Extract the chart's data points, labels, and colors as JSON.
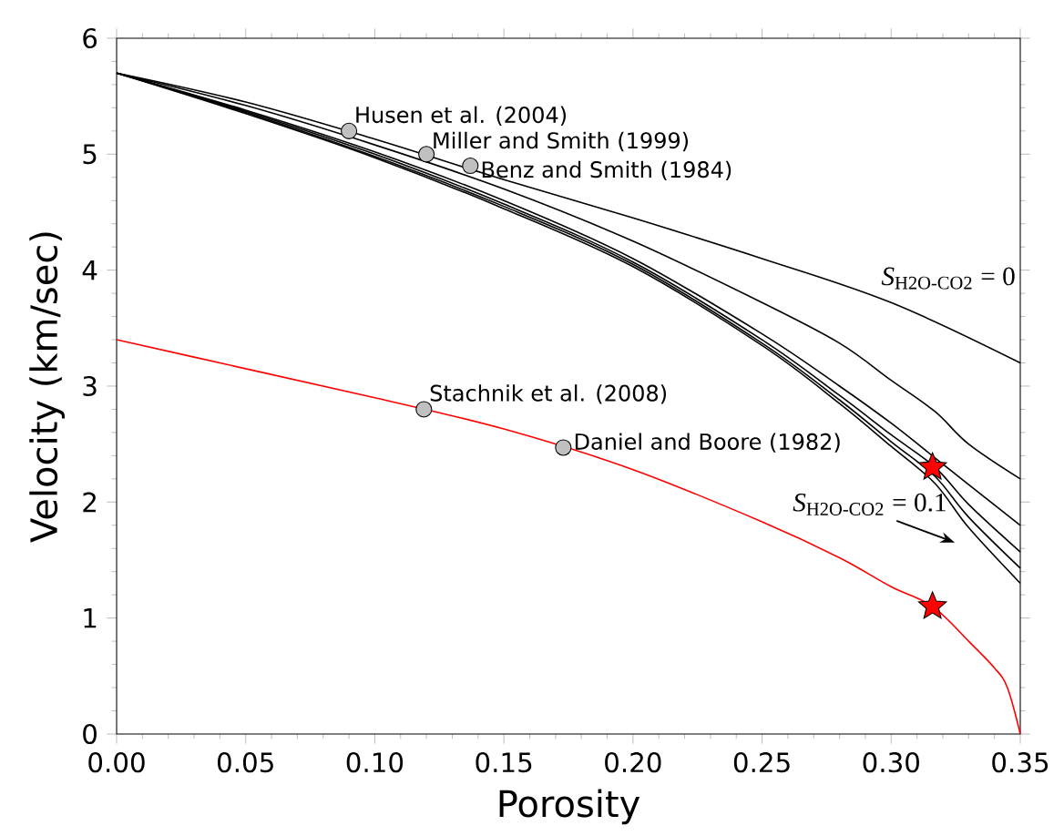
{
  "chart_data": {
    "type": "line",
    "xlabel": "Porosity",
    "ylabel": "Velocity (km/sec)",
    "xlim": [
      0,
      0.35
    ],
    "ylim": [
      0,
      6
    ],
    "xticks": [
      {
        "value": 0,
        "label": "0.00"
      },
      {
        "value": 0.05,
        "label": "0.05"
      },
      {
        "value": 0.1,
        "label": "0.10"
      },
      {
        "value": 0.15,
        "label": "0.15"
      },
      {
        "value": 0.2,
        "label": "0.20"
      },
      {
        "value": 0.25,
        "label": "0.25"
      },
      {
        "value": 0.3,
        "label": "0.30"
      },
      {
        "value": 0.35,
        "label": "0.35"
      }
    ],
    "yticks": [
      0,
      1,
      2,
      3,
      4,
      5,
      6
    ],
    "series": [
      {
        "color": "#000000",
        "x": [
          0,
          0.05,
          0.1,
          0.15,
          0.2,
          0.25,
          0.3,
          0.35
        ],
        "values": [
          5.7,
          5.45,
          5.13,
          4.78,
          4.45,
          4.1,
          3.72,
          3.2
        ]
      },
      {
        "color": "#000000",
        "x": [
          0,
          0.05,
          0.1,
          0.15,
          0.2,
          0.25,
          0.28,
          0.3,
          0.317,
          0.33,
          0.35
        ],
        "values": [
          5.7,
          5.42,
          5.08,
          4.7,
          4.25,
          3.72,
          3.37,
          3.05,
          2.78,
          2.5,
          2.2
        ]
      },
      {
        "color": "#000000",
        "x": [
          0,
          0.05,
          0.1,
          0.15,
          0.2,
          0.25,
          0.28,
          0.3,
          0.317,
          0.33,
          0.35
        ],
        "values": [
          5.7,
          5.38,
          5.02,
          4.6,
          4.1,
          3.45,
          3.0,
          2.68,
          2.38,
          2.15,
          1.8
        ]
      },
      {
        "color": "#000000",
        "x": [
          0,
          0.05,
          0.1,
          0.15,
          0.2,
          0.25,
          0.28,
          0.3,
          0.317,
          0.33,
          0.35
        ],
        "values": [
          5.7,
          5.37,
          5.0,
          4.57,
          4.07,
          3.4,
          2.92,
          2.58,
          2.3,
          1.98,
          1.57
        ]
      },
      {
        "color": "#000000",
        "x": [
          0,
          0.05,
          0.1,
          0.15,
          0.2,
          0.25,
          0.28,
          0.3,
          0.317,
          0.33,
          0.35
        ],
        "values": [
          5.7,
          5.36,
          4.98,
          4.55,
          4.05,
          3.37,
          2.88,
          2.52,
          2.22,
          1.87,
          1.43
        ]
      },
      {
        "color": "#000000",
        "x": [
          0,
          0.05,
          0.1,
          0.15,
          0.2,
          0.25,
          0.28,
          0.3,
          0.317,
          0.33,
          0.35
        ],
        "values": [
          5.7,
          5.35,
          4.97,
          4.53,
          4.03,
          3.35,
          2.85,
          2.48,
          2.16,
          1.78,
          1.3
        ]
      },
      {
        "color": "#ff0000",
        "x": [
          0,
          0.05,
          0.1,
          0.15,
          0.2,
          0.25,
          0.28,
          0.3,
          0.316,
          0.33,
          0.34,
          0.345,
          0.35
        ],
        "values": [
          3.4,
          3.15,
          2.9,
          2.63,
          2.28,
          1.83,
          1.52,
          1.27,
          1.1,
          0.8,
          0.57,
          0.4,
          0
        ]
      },
      {
        "type": "scatter",
        "marker": "circle",
        "color": "#c0c0c0",
        "x": [
          0.09,
          0.12,
          0.137,
          0.119,
          0.173
        ],
        "values": [
          5.2,
          5.0,
          4.9,
          2.8,
          2.47
        ]
      },
      {
        "type": "scatter",
        "marker": "star",
        "color": "#ff0000",
        "x": [
          0.316,
          0.316
        ],
        "values": [
          2.3,
          1.1
        ]
      }
    ],
    "annotations": [
      {
        "text": "Husen et al. (2004)",
        "x": 0.09,
        "y": 5.2
      },
      {
        "text": "Miller and Smith (1999)",
        "x": 0.12,
        "y": 5.0
      },
      {
        "text": "Benz and Smith (1984)",
        "x": 0.137,
        "y": 4.9
      },
      {
        "text": "Stachnik et al. (2008)",
        "x": 0.119,
        "y": 2.8
      },
      {
        "text": "Daniel and Boore (1982)",
        "x": 0.173,
        "y": 2.47
      },
      "*S*$_{H2O-CO2}$ = 0",
      "*S*$_{H2O-CO2}$ = 0.1"
    ]
  }
}
